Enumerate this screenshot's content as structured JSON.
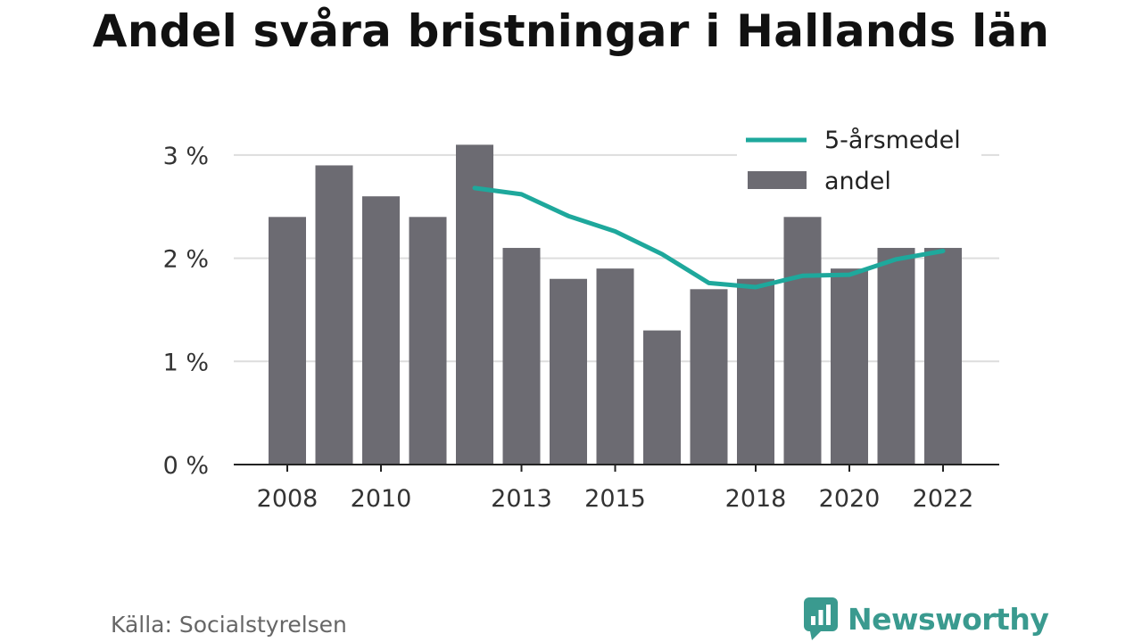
{
  "title": "Andel svåra bristningar i Hallands län",
  "source": "Källa: Socialstyrelsen",
  "brand": {
    "name": "Newsworthy",
    "icon": "newsworthy-logo-icon"
  },
  "colors": {
    "bar": "#6c6b72",
    "line": "#1ea89c",
    "grid": "#dddddd",
    "axis": "#222222",
    "text": "#333333",
    "brand": "#3a9a8f"
  },
  "chart_data": {
    "type": "bar",
    "title": "Andel svåra bristningar i Hallands län",
    "x": [
      2008,
      2009,
      2010,
      2011,
      2012,
      2013,
      2014,
      2015,
      2016,
      2017,
      2018,
      2019,
      2020,
      2021,
      2022
    ],
    "x_tick_labels": [
      "2008",
      "2010",
      "2013",
      "2015",
      "2018",
      "2020",
      "2022"
    ],
    "y_ticks": [
      0,
      1,
      2,
      3
    ],
    "y_tick_labels": [
      "0 %",
      "1 %",
      "2 %",
      "3 %"
    ],
    "ylim": [
      0,
      3.5
    ],
    "grid": true,
    "legend_position": "top-right",
    "series": [
      {
        "name": "andel",
        "type": "bar",
        "values": [
          2.4,
          2.9,
          2.6,
          2.4,
          3.1,
          2.1,
          1.8,
          1.9,
          1.3,
          1.7,
          1.8,
          2.4,
          1.9,
          2.1,
          2.1
        ]
      },
      {
        "name": "5-årsmedel",
        "type": "line",
        "values": [
          null,
          null,
          null,
          null,
          2.68,
          2.62,
          2.41,
          2.26,
          2.04,
          1.76,
          1.72,
          1.83,
          1.84,
          1.99,
          2.07
        ]
      }
    ]
  }
}
